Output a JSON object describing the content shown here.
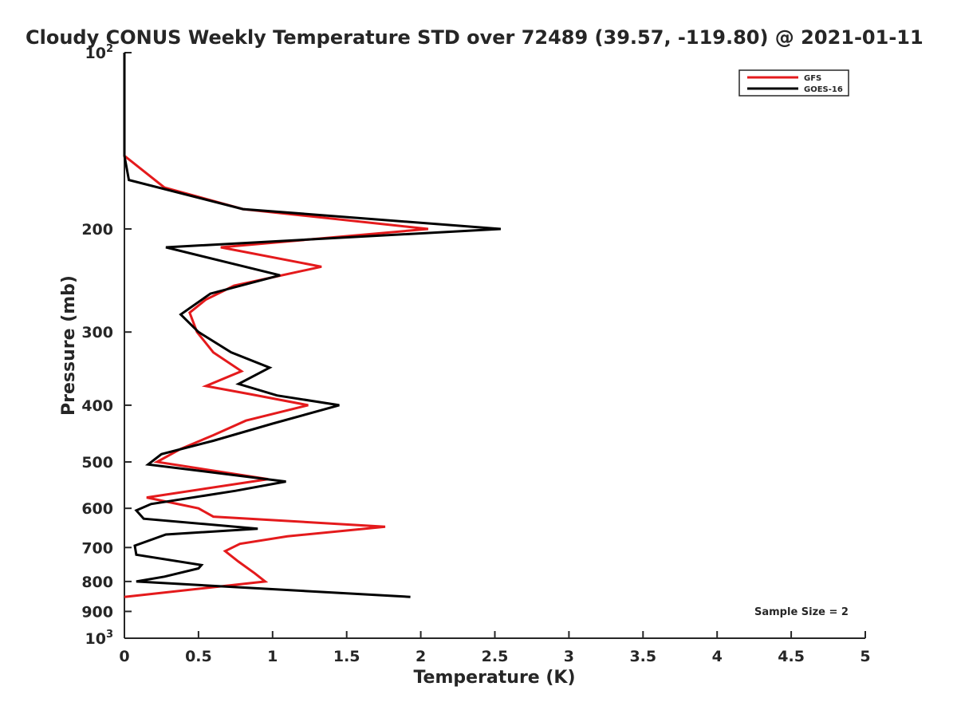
{
  "chart_data": {
    "type": "line",
    "title": "Cloudy CONUS Weekly Temperature STD over 72489 (39.57, -119.80) @ 2021-01-11",
    "xlabel": "Temperature (K)",
    "ylabel": "Pressure (mb)",
    "xlim": [
      0,
      5
    ],
    "ylim": [
      100,
      1000
    ],
    "y_scale": "log",
    "y_reversed": true,
    "x_ticks": [
      {
        "value": 0,
        "label": "0"
      },
      {
        "value": 0.5,
        "label": "0.5"
      },
      {
        "value": 1,
        "label": "1"
      },
      {
        "value": 1.5,
        "label": "1.5"
      },
      {
        "value": 2,
        "label": "2"
      },
      {
        "value": 2.5,
        "label": "2.5"
      },
      {
        "value": 3,
        "label": "3"
      },
      {
        "value": 3.5,
        "label": "3.5"
      },
      {
        "value": 4,
        "label": "4"
      },
      {
        "value": 4.5,
        "label": "4.5"
      },
      {
        "value": 5,
        "label": "5"
      }
    ],
    "y_ticks": [
      {
        "value": 100,
        "label": "10",
        "sup": "2"
      },
      {
        "value": 200,
        "label": "200",
        "sup": ""
      },
      {
        "value": 300,
        "label": "300",
        "sup": ""
      },
      {
        "value": 400,
        "label": "400",
        "sup": ""
      },
      {
        "value": 500,
        "label": "500",
        "sup": ""
      },
      {
        "value": 600,
        "label": "600",
        "sup": ""
      },
      {
        "value": 700,
        "label": "700",
        "sup": ""
      },
      {
        "value": 800,
        "label": "800",
        "sup": ""
      },
      {
        "value": 900,
        "label": "900",
        "sup": ""
      },
      {
        "value": 1000,
        "label": "10",
        "sup": "3"
      }
    ],
    "grid": false,
    "legend": "top-right",
    "annotation": "Sample Size = 2",
    "series": [
      {
        "name": "GFS",
        "color": "#e41a1c",
        "points": [
          [
            0,
            100
          ],
          [
            0,
            150
          ],
          [
            0.27,
            170
          ],
          [
            0.8,
            185
          ],
          [
            2.05,
            200
          ],
          [
            0.65,
            215
          ],
          [
            1.33,
            232
          ],
          [
            0.74,
            250
          ],
          [
            0.55,
            264
          ],
          [
            0.44,
            278
          ],
          [
            0.49,
            300
          ],
          [
            0.6,
            325
          ],
          [
            0.79,
            350
          ],
          [
            0.55,
            371
          ],
          [
            0.85,
            383
          ],
          [
            1.24,
            400
          ],
          [
            0.82,
            425
          ],
          [
            0.6,
            450
          ],
          [
            0.38,
            475
          ],
          [
            0.22,
            500
          ],
          [
            0.97,
            535
          ],
          [
            0.15,
            575
          ],
          [
            0.5,
            600
          ],
          [
            0.6,
            620
          ],
          [
            1.76,
            645
          ],
          [
            1.1,
            670
          ],
          [
            0.78,
            690
          ],
          [
            0.68,
            710
          ],
          [
            0.77,
            740
          ],
          [
            0.88,
            775
          ],
          [
            0.95,
            800
          ],
          [
            0,
            850
          ]
        ]
      },
      {
        "name": "GOES-16",
        "color": "#000000",
        "points": [
          [
            0,
            100
          ],
          [
            0,
            150
          ],
          [
            0.03,
            165
          ],
          [
            0.8,
            185
          ],
          [
            2.54,
            200
          ],
          [
            0.28,
            215
          ],
          [
            1.05,
            240
          ],
          [
            0.58,
            258
          ],
          [
            0.38,
            280
          ],
          [
            0.5,
            300
          ],
          [
            0.72,
            325
          ],
          [
            0.98,
            345
          ],
          [
            0.77,
            368
          ],
          [
            1.03,
            385
          ],
          [
            1.45,
            400
          ],
          [
            1.0,
            430
          ],
          [
            0.6,
            460
          ],
          [
            0.25,
            485
          ],
          [
            0.16,
            505
          ],
          [
            1.09,
            540
          ],
          [
            0.75,
            560
          ],
          [
            0.18,
            590
          ],
          [
            0.08,
            605
          ],
          [
            0.13,
            625
          ],
          [
            0.9,
            650
          ],
          [
            0.28,
            665
          ],
          [
            0.07,
            695
          ],
          [
            0.08,
            720
          ],
          [
            0.52,
            750
          ],
          [
            0.5,
            760
          ],
          [
            0.27,
            785
          ],
          [
            0.08,
            800
          ],
          [
            1.93,
            850
          ]
        ]
      }
    ]
  }
}
